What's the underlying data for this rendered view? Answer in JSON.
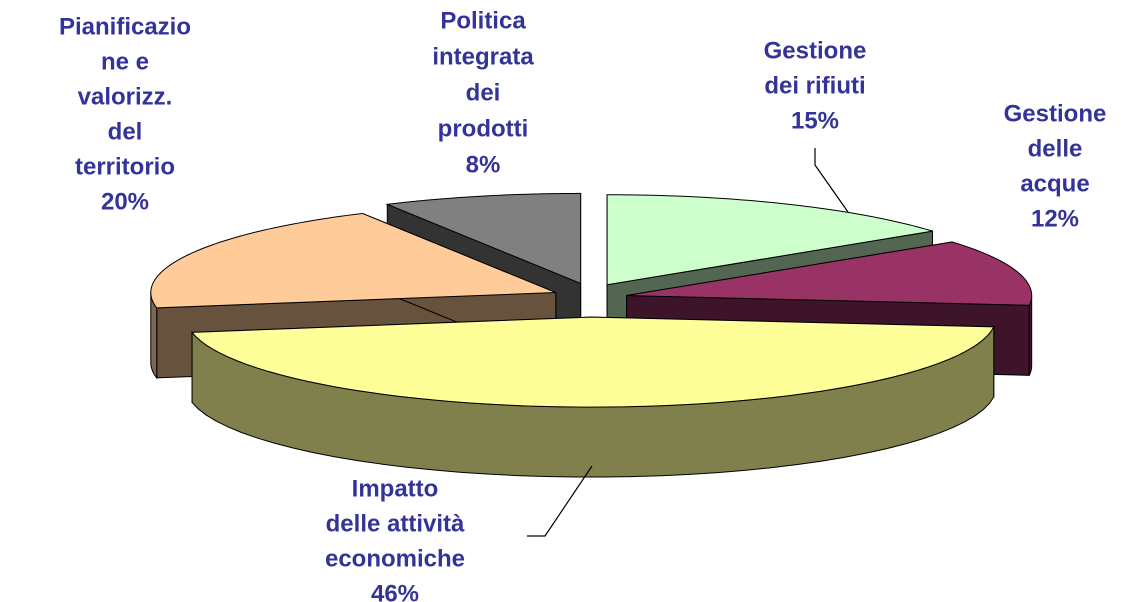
{
  "chart_data": {
    "type": "pie3d",
    "categories": [
      [
        "Gestione",
        "dei rifiuti"
      ],
      [
        "Gestione",
        "delle",
        "acque"
      ],
      [
        "Impatto",
        "delle attività",
        "economiche"
      ],
      [
        "Pianificazio",
        "ne e",
        "valorizz.",
        "del",
        "territorio"
      ],
      [
        "Politica",
        "integrata",
        "dei",
        "prodotti"
      ]
    ],
    "values": [
      15,
      12,
      46,
      20,
      8
    ],
    "value_labels": [
      "15%",
      "12%",
      "46%",
      "20%",
      "8%"
    ],
    "colors": [
      "#ccffcc",
      "#993366",
      "#ffff99",
      "#ffcc99",
      "#808080"
    ]
  }
}
